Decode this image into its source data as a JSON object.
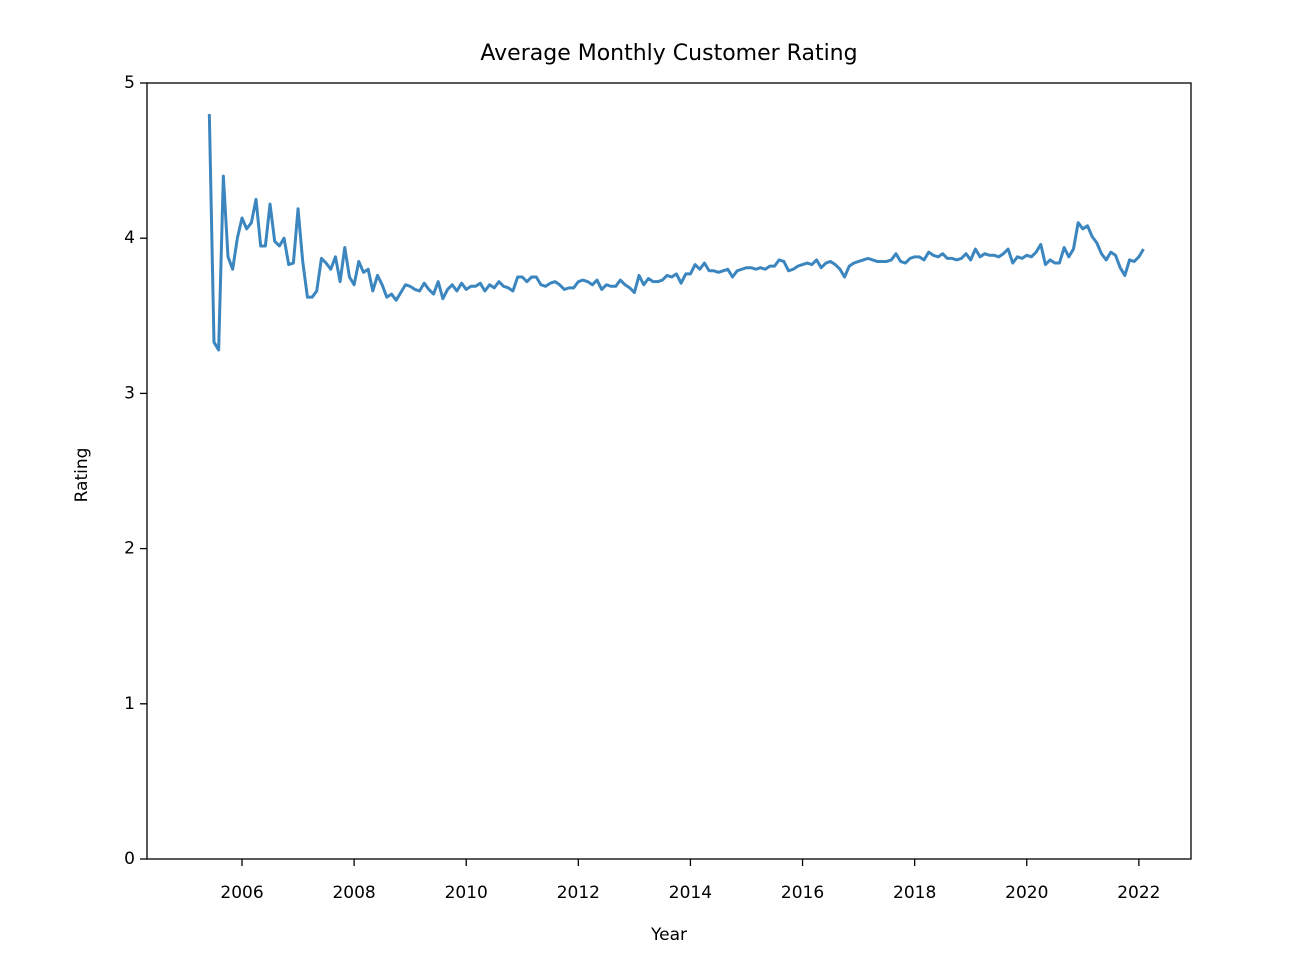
{
  "chart_data": {
    "type": "line",
    "title": "Average Monthly Customer Rating",
    "x_label": "Year",
    "y_label": "Rating",
    "color": "#3c86bf",
    "x": [
      2005.417,
      2005.5,
      2005.583,
      2005.667,
      2005.75,
      2005.833,
      2005.917,
      2006,
      2006.083,
      2006.167,
      2006.25,
      2006.333,
      2006.417,
      2006.5,
      2006.583,
      2006.667,
      2006.75,
      2006.833,
      2006.917,
      2007,
      2007.083,
      2007.167,
      2007.25,
      2007.333,
      2007.417,
      2007.5,
      2007.583,
      2007.667,
      2007.75,
      2007.833,
      2007.917,
      2008,
      2008.083,
      2008.167,
      2008.25,
      2008.333,
      2008.417,
      2008.5,
      2008.583,
      2008.667,
      2008.75,
      2008.833,
      2008.917,
      2009,
      2009.083,
      2009.167,
      2009.25,
      2009.333,
      2009.417,
      2009.5,
      2009.583,
      2009.667,
      2009.75,
      2009.833,
      2009.917,
      2010,
      2010.083,
      2010.167,
      2010.25,
      2010.333,
      2010.417,
      2010.5,
      2010.583,
      2010.667,
      2010.75,
      2010.833,
      2010.917,
      2011,
      2011.083,
      2011.167,
      2011.25,
      2011.333,
      2011.417,
      2011.5,
      2011.583,
      2011.667,
      2011.75,
      2011.833,
      2011.917,
      2012,
      2012.083,
      2012.167,
      2012.25,
      2012.333,
      2012.417,
      2012.5,
      2012.583,
      2012.667,
      2012.75,
      2012.833,
      2012.917,
      2013,
      2013.083,
      2013.167,
      2013.25,
      2013.333,
      2013.417,
      2013.5,
      2013.583,
      2013.667,
      2013.75,
      2013.833,
      2013.917,
      2014,
      2014.083,
      2014.167,
      2014.25,
      2014.333,
      2014.417,
      2014.5,
      2014.583,
      2014.667,
      2014.75,
      2014.833,
      2014.917,
      2015,
      2015.083,
      2015.167,
      2015.25,
      2015.333,
      2015.417,
      2015.5,
      2015.583,
      2015.667,
      2015.75,
      2015.833,
      2015.917,
      2016,
      2016.083,
      2016.167,
      2016.25,
      2016.333,
      2016.417,
      2016.5,
      2016.583,
      2016.667,
      2016.75,
      2016.833,
      2016.917,
      2017,
      2017.083,
      2017.167,
      2017.25,
      2017.333,
      2017.417,
      2017.5,
      2017.583,
      2017.667,
      2017.75,
      2017.833,
      2017.917,
      2018,
      2018.083,
      2018.167,
      2018.25,
      2018.333,
      2018.417,
      2018.5,
      2018.583,
      2018.667,
      2018.75,
      2018.833,
      2018.917,
      2019,
      2019.083,
      2019.167,
      2019.25,
      2019.333,
      2019.417,
      2019.5,
      2019.583,
      2019.667,
      2019.75,
      2019.833,
      2019.917,
      2020,
      2020.083,
      2020.167,
      2020.25,
      2020.333,
      2020.417,
      2020.5,
      2020.583,
      2020.667,
      2020.75,
      2020.833,
      2020.917,
      2021,
      2021.083,
      2021.167,
      2021.25,
      2021.333,
      2021.417,
      2021.5,
      2021.583,
      2021.667,
      2021.75,
      2021.833,
      2021.917,
      2022,
      2022.083
    ],
    "values": [
      4.8,
      3.33,
      3.28,
      4.4,
      3.88,
      3.8,
      4.0,
      4.13,
      4.06,
      4.1,
      4.25,
      3.95,
      3.95,
      4.22,
      3.98,
      3.95,
      4.0,
      3.83,
      3.84,
      4.19,
      3.85,
      3.62,
      3.62,
      3.66,
      3.87,
      3.84,
      3.8,
      3.88,
      3.72,
      3.94,
      3.75,
      3.7,
      3.85,
      3.78,
      3.8,
      3.66,
      3.76,
      3.7,
      3.62,
      3.64,
      3.6,
      3.65,
      3.7,
      3.69,
      3.67,
      3.66,
      3.71,
      3.67,
      3.64,
      3.72,
      3.61,
      3.67,
      3.7,
      3.66,
      3.71,
      3.67,
      3.69,
      3.69,
      3.71,
      3.66,
      3.7,
      3.68,
      3.72,
      3.69,
      3.68,
      3.66,
      3.75,
      3.75,
      3.72,
      3.75,
      3.75,
      3.7,
      3.69,
      3.71,
      3.72,
      3.7,
      3.67,
      3.68,
      3.68,
      3.72,
      3.73,
      3.72,
      3.7,
      3.73,
      3.67,
      3.7,
      3.69,
      3.69,
      3.73,
      3.7,
      3.68,
      3.65,
      3.76,
      3.7,
      3.74,
      3.72,
      3.72,
      3.73,
      3.76,
      3.75,
      3.77,
      3.71,
      3.77,
      3.77,
      3.83,
      3.8,
      3.84,
      3.79,
      3.79,
      3.78,
      3.79,
      3.8,
      3.75,
      3.79,
      3.8,
      3.81,
      3.81,
      3.8,
      3.81,
      3.8,
      3.82,
      3.82,
      3.86,
      3.85,
      3.79,
      3.8,
      3.82,
      3.83,
      3.84,
      3.83,
      3.86,
      3.81,
      3.84,
      3.85,
      3.83,
      3.8,
      3.75,
      3.82,
      3.84,
      3.85,
      3.86,
      3.87,
      3.86,
      3.85,
      3.85,
      3.85,
      3.86,
      3.9,
      3.85,
      3.84,
      3.87,
      3.88,
      3.88,
      3.86,
      3.91,
      3.89,
      3.88,
      3.9,
      3.87,
      3.87,
      3.86,
      3.87,
      3.9,
      3.86,
      3.93,
      3.88,
      3.9,
      3.89,
      3.89,
      3.88,
      3.9,
      3.93,
      3.84,
      3.88,
      3.87,
      3.89,
      3.88,
      3.91,
      3.96,
      3.83,
      3.86,
      3.84,
      3.84,
      3.94,
      3.88,
      3.93,
      4.1,
      4.06,
      4.08,
      4.01,
      3.97,
      3.9,
      3.86,
      3.91,
      3.89,
      3.81,
      3.76,
      3.86,
      3.85,
      3.88,
      3.93
    ],
    "xlim": [
      2004.305,
      2022.93
    ],
    "ylim": [
      0,
      5
    ],
    "xticks": [
      2006,
      2008,
      2010,
      2012,
      2014,
      2016,
      2018,
      2020,
      2022
    ],
    "yticks": [
      0,
      1,
      2,
      3,
      4,
      5
    ]
  }
}
